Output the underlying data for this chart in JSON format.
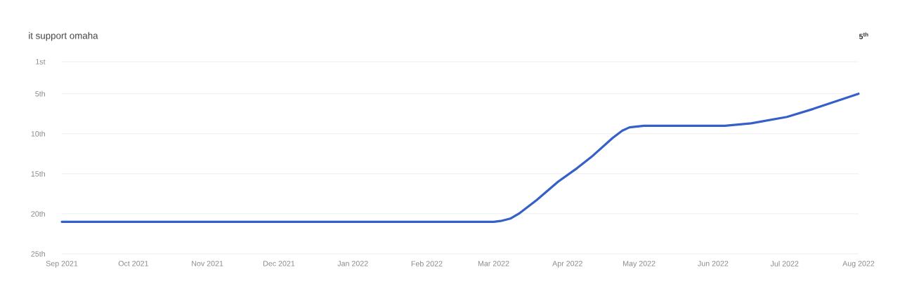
{
  "chart_data": {
    "type": "line",
    "title": "it support omaha",
    "annotations": [
      "5$^{th}$"
    ],
    "x": [
      "2021-09-01",
      "2022-03-01",
      "2022-03-04",
      "2022-03-08",
      "2022-03-12",
      "2022-03-19",
      "2022-03-28",
      "2022-04-05",
      "2022-04-11",
      "2022-04-20",
      "2022-04-24",
      "2022-04-27",
      "2022-05-03",
      "2022-06-06",
      "2022-06-17",
      "2022-07-02",
      "2022-07-13",
      "2022-08-01"
    ],
    "series": [
      {
        "color": "#3560c9",
        "values": [
          21,
          21,
          20.9,
          20.6,
          19.9,
          18.3,
          16.0,
          14.3,
          12.9,
          10.5,
          9.6,
          9.2,
          9.0,
          9.0,
          8.7,
          7.9,
          6.9,
          5.0
        ]
      }
    ],
    "xlim": [
      "2021-09-01",
      "2022-08-01"
    ],
    "xticks": [
      {
        "value": "2021-09-01",
        "label": "Sep 2021"
      },
      {
        "value": "2021-10-01",
        "label": "Oct 2021"
      },
      {
        "value": "2021-11-01",
        "label": "Nov 2021"
      },
      {
        "value": "2021-12-01",
        "label": "Dec 2021"
      },
      {
        "value": "2022-01-01",
        "label": "Jan 2022"
      },
      {
        "value": "2022-02-01",
        "label": "Feb 2022"
      },
      {
        "value": "2022-03-01",
        "label": "Mar 2022"
      },
      {
        "value": "2022-04-01",
        "label": "Apr 2022"
      },
      {
        "value": "2022-05-01",
        "label": "May 2022"
      },
      {
        "value": "2022-06-01",
        "label": "Jun 2022"
      },
      {
        "value": "2022-07-01",
        "label": "Jul 2022"
      },
      {
        "value": "2022-08-01",
        "label": "Aug 2022"
      }
    ],
    "ylim": [
      25,
      1
    ],
    "yticks": [
      {
        "value": 1,
        "label": "1st"
      },
      {
        "value": 5,
        "label": "5th"
      },
      {
        "value": 10,
        "label": "10th"
      },
      {
        "value": 15,
        "label": "15th"
      },
      {
        "value": 20,
        "label": "20th"
      },
      {
        "value": 25,
        "label": "25th"
      }
    ],
    "grid": "y",
    "marker": "none",
    "line_style": "solid"
  }
}
